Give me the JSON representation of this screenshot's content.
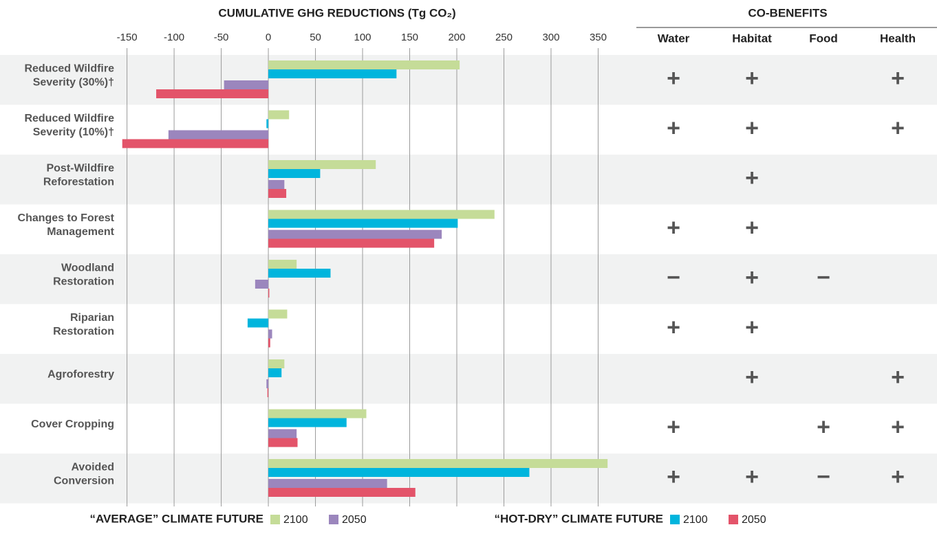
{
  "chart_data": {
    "type": "bar",
    "orientation": "horizontal",
    "title": "CUMULATIVE GHG REDUCTIONS (Tg CO₂)",
    "categories": [
      [
        "Reduced Wildfire",
        "Severity (30%)†"
      ],
      [
        "Reduced Wildfire",
        "Severity (10%)†"
      ],
      [
        "Post-Wildfire",
        "Reforestation"
      ],
      [
        "Changes to Forest",
        "Management"
      ],
      [
        "Woodland",
        "Restoration"
      ],
      [
        "Riparian",
        "Restoration"
      ],
      [
        "Agroforestry"
      ],
      [
        "Cover Cropping"
      ],
      [
        "Avoided",
        "Conversion"
      ]
    ],
    "series_groups": [
      {
        "name": "“AVERAGE” CLIMATE FUTURE",
        "series": [
          {
            "name": "2100",
            "color": "#c5dc98",
            "values": [
              203,
              22,
              114,
              240,
              30,
              20,
              17,
              104,
              360
            ]
          },
          {
            "name": "2050",
            "color": "#9b86bd",
            "values": [
              -47,
              -106,
              17,
              184,
              -14,
              4,
              -2,
              30,
              126
            ]
          }
        ]
      },
      {
        "name": "“HOT-DRY” CLIMATE FUTURE",
        "series": [
          {
            "name": "2100",
            "color": "#00b5dd",
            "values": [
              136,
              -2,
              55,
              201,
              66,
              -22,
              14,
              83,
              277
            ]
          },
          {
            "name": "2050",
            "color": "#e3546a",
            "values": [
              -119,
              -155,
              19,
              176,
              1,
              2,
              -1,
              31,
              156
            ]
          }
        ]
      }
    ],
    "xlim": [
      -157,
      365
    ],
    "xticks": [
      -150,
      -100,
      -50,
      0,
      50,
      100,
      150,
      200,
      250,
      300,
      350
    ],
    "grid": true
  },
  "co_benefits": {
    "title": "CO-BENEFITS",
    "columns": [
      "Water",
      "Habitat",
      "Food",
      "Health"
    ],
    "rows": [
      [
        "+",
        "+",
        null,
        "+"
      ],
      [
        "+",
        "+",
        null,
        "+"
      ],
      [
        null,
        "+",
        null,
        null
      ],
      [
        "+",
        "+",
        null,
        null
      ],
      [
        "−",
        "+",
        "−",
        null
      ],
      [
        "+",
        "+",
        null,
        null
      ],
      [
        null,
        "+",
        null,
        "+"
      ],
      [
        "+",
        null,
        "+",
        "+"
      ],
      [
        "+",
        "+",
        "−",
        "+"
      ]
    ]
  }
}
